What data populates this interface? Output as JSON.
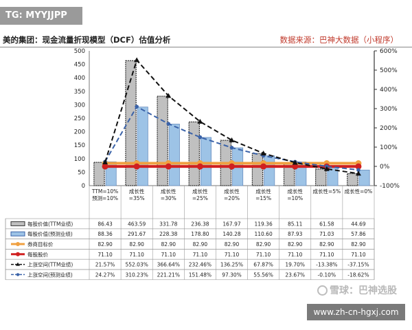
{
  "tag_text": "TG: MYYJJPP",
  "title": "美的集团：现金流量折现模型（DCF）估值分析",
  "source": "数据来源：巴神大数据（小程序）",
  "watermark_snow": "雪球：巴神选股",
  "watermark_url": "www.zh-cn-hgxj.com",
  "colors": {
    "ttm_bar": "#c0c0c0",
    "fcst_bar": "#9dc3e6",
    "target": "#f0a040",
    "price": "#d02020",
    "ttm_line": "#111111",
    "fcst_line": "#3a62a8"
  },
  "chart_data": {
    "type": "bar",
    "categories": [
      [
        "TTM=10%",
        "预测=10%"
      ],
      [
        "成长性",
        "=35%"
      ],
      [
        "成长性",
        "=30%"
      ],
      [
        "成长性",
        "=25%"
      ],
      [
        "成长性",
        "=20%"
      ],
      [
        "成长性",
        "=15%"
      ],
      [
        "成长性",
        "=10%"
      ],
      [
        "成长性=5%"
      ],
      [
        "成长性=0%"
      ]
    ],
    "ylim_left": [
      0,
      500
    ],
    "yticks_left": [
      "0",
      "50",
      "100",
      "150",
      "200",
      "250",
      "300",
      "350",
      "400",
      "450",
      "500"
    ],
    "ylim_right": [
      -100,
      600
    ],
    "yticks_right": [
      "-100%",
      "0%",
      "100%",
      "200%",
      "300%",
      "400%",
      "500%",
      "600%"
    ],
    "series": [
      {
        "name": "每股价值(TTM业绩)",
        "kind": "bar",
        "values": [
          86.43,
          463.59,
          331.78,
          236.38,
          167.97,
          119.36,
          85.11,
          61.58,
          44.69
        ],
        "labels": [
          "86.43",
          "463.59",
          "331.78",
          "236.38",
          "167.97",
          "119.36",
          "85.11",
          "61.58",
          "44.69"
        ]
      },
      {
        "name": "每股价值(预测业绩)",
        "kind": "bar",
        "values": [
          88.36,
          291.67,
          228.38,
          178.8,
          140.28,
          110.6,
          87.93,
          71.03,
          57.86
        ],
        "labels": [
          "88.36",
          "291.67",
          "228.38",
          "178.80",
          "140.28",
          "110.60",
          "87.93",
          "71.03",
          "57.86"
        ]
      },
      {
        "name": "券商目标价",
        "kind": "line",
        "values": [
          82.9,
          82.9,
          82.9,
          82.9,
          82.9,
          82.9,
          82.9,
          82.9,
          82.9
        ],
        "labels": [
          "82.90",
          "82.90",
          "82.90",
          "82.90",
          "82.90",
          "82.90",
          "82.90",
          "82.90",
          "82.90"
        ]
      },
      {
        "name": "每股股价",
        "kind": "line",
        "values": [
          71.1,
          71.1,
          71.1,
          71.1,
          71.1,
          71.1,
          71.1,
          71.1,
          71.1
        ],
        "labels": [
          "71.10",
          "71.10",
          "71.10",
          "71.10",
          "71.10",
          "71.10",
          "71.10",
          "71.10",
          "71.10"
        ]
      },
      {
        "name": "上涨空间(TTM业绩)",
        "kind": "line",
        "axis": "right",
        "values": [
          21.57,
          552.03,
          366.64,
          232.46,
          136.25,
          67.87,
          19.7,
          -13.38,
          -37.15
        ],
        "labels": [
          "21.57%",
          "552.03%",
          "366.64%",
          "232.46%",
          "136.25%",
          "67.87%",
          "19.70%",
          "-13.38%",
          "-37.15%"
        ]
      },
      {
        "name": "上涨空间(预测业绩)",
        "kind": "line",
        "axis": "right",
        "values": [
          24.27,
          310.23,
          221.21,
          151.48,
          97.3,
          55.56,
          23.67,
          -0.1,
          -18.62
        ],
        "labels": [
          "24.27%",
          "310.23%",
          "221.21%",
          "151.48%",
          "97.30%",
          "55.56%",
          "23.67%",
          "-0.10%",
          "-18.62%"
        ]
      }
    ]
  }
}
